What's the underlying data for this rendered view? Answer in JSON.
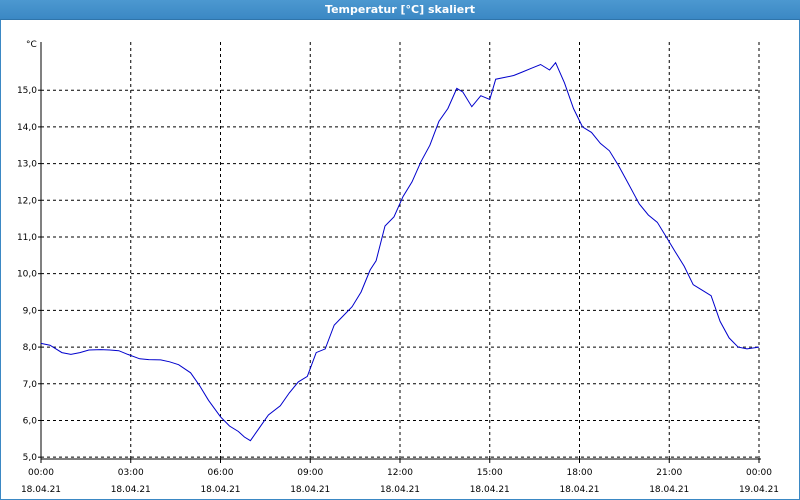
{
  "window": {
    "title": "Temperatur [°C] skaliert"
  },
  "chart_data": {
    "type": "line",
    "title": "Temperatur [°C] skaliert",
    "ylabel": "°C",
    "xlabel": "",
    "ylim": [
      4.95,
      16.15
    ],
    "xlim": [
      0,
      24
    ],
    "grid": true,
    "line_color": "#0000cc",
    "y_ticks": [
      5.0,
      6.0,
      7.0,
      8.0,
      9.0,
      10.0,
      11.0,
      12.0,
      13.0,
      14.0,
      15.0
    ],
    "y_tick_labels": [
      "5,0",
      "6,0",
      "7,0",
      "8,0",
      "9,0",
      "10,0",
      "11,0",
      "12,0",
      "13,0",
      "14,0",
      "15,0"
    ],
    "x_ticks": [
      {
        "hours": 0,
        "time": "00:00",
        "date": "18.04.21"
      },
      {
        "hours": 3,
        "time": "03:00",
        "date": "18.04.21"
      },
      {
        "hours": 6,
        "time": "06:00",
        "date": "18.04.21"
      },
      {
        "hours": 9,
        "time": "09:00",
        "date": "18.04.21"
      },
      {
        "hours": 12,
        "time": "12:00",
        "date": "18.04.21"
      },
      {
        "hours": 15,
        "time": "15:00",
        "date": "18.04.21"
      },
      {
        "hours": 18,
        "time": "18:00",
        "date": "18.04.21"
      },
      {
        "hours": 21,
        "time": "21:00",
        "date": "18.04.21"
      },
      {
        "hours": 24,
        "time": "00:00",
        "date": "19.04.21"
      }
    ],
    "series": [
      {
        "x": [
          0,
          0.3,
          0.7,
          1.0,
          1.3,
          1.6,
          2.0,
          2.3,
          2.6,
          2.9,
          3.3,
          3.6,
          4.0,
          4.3,
          4.6,
          5.0,
          5.3,
          5.6,
          6.0,
          6.3,
          6.6,
          6.8,
          7.0,
          7.3,
          7.6,
          8.0,
          8.3,
          8.6,
          8.9,
          9.2,
          9.5,
          9.8,
          10.1,
          10.4,
          10.7,
          11.0,
          11.2,
          11.5,
          11.8,
          12.1,
          12.4,
          12.7,
          13.0,
          13.3,
          13.6,
          13.9,
          14.1,
          14.4,
          14.7,
          15.0,
          15.2,
          15.5,
          15.8,
          16.1,
          16.4,
          16.7,
          17.0,
          17.2,
          17.5,
          17.8,
          18.1,
          18.4,
          18.7,
          19.0,
          19.3,
          19.6,
          20.0,
          20.3,
          20.6,
          20.9,
          21.2,
          21.5,
          21.8,
          22.1,
          22.4,
          22.7,
          23.0,
          23.3,
          23.6,
          24.0
        ],
        "y": [
          8.1,
          8.05,
          7.85,
          7.8,
          7.85,
          7.92,
          7.93,
          7.92,
          7.9,
          7.8,
          7.68,
          7.66,
          7.65,
          7.6,
          7.52,
          7.3,
          6.95,
          6.55,
          6.1,
          5.85,
          5.7,
          5.55,
          5.45,
          5.8,
          6.15,
          6.4,
          6.75,
          7.05,
          7.2,
          7.85,
          7.95,
          8.6,
          8.85,
          9.1,
          9.5,
          10.1,
          10.35,
          11.3,
          11.55,
          12.1,
          12.5,
          13.05,
          13.5,
          14.15,
          14.5,
          15.05,
          14.95,
          14.55,
          14.85,
          14.75,
          15.3,
          15.35,
          15.4,
          15.5,
          15.6,
          15.7,
          15.55,
          15.75,
          15.2,
          14.5,
          14.0,
          13.85,
          13.55,
          13.35,
          12.95,
          12.5,
          11.9,
          11.6,
          11.4,
          11.0,
          10.6,
          10.2,
          9.7,
          9.55,
          9.4,
          8.7,
          8.25,
          8.0,
          7.95,
          8.0
        ]
      }
    ]
  }
}
